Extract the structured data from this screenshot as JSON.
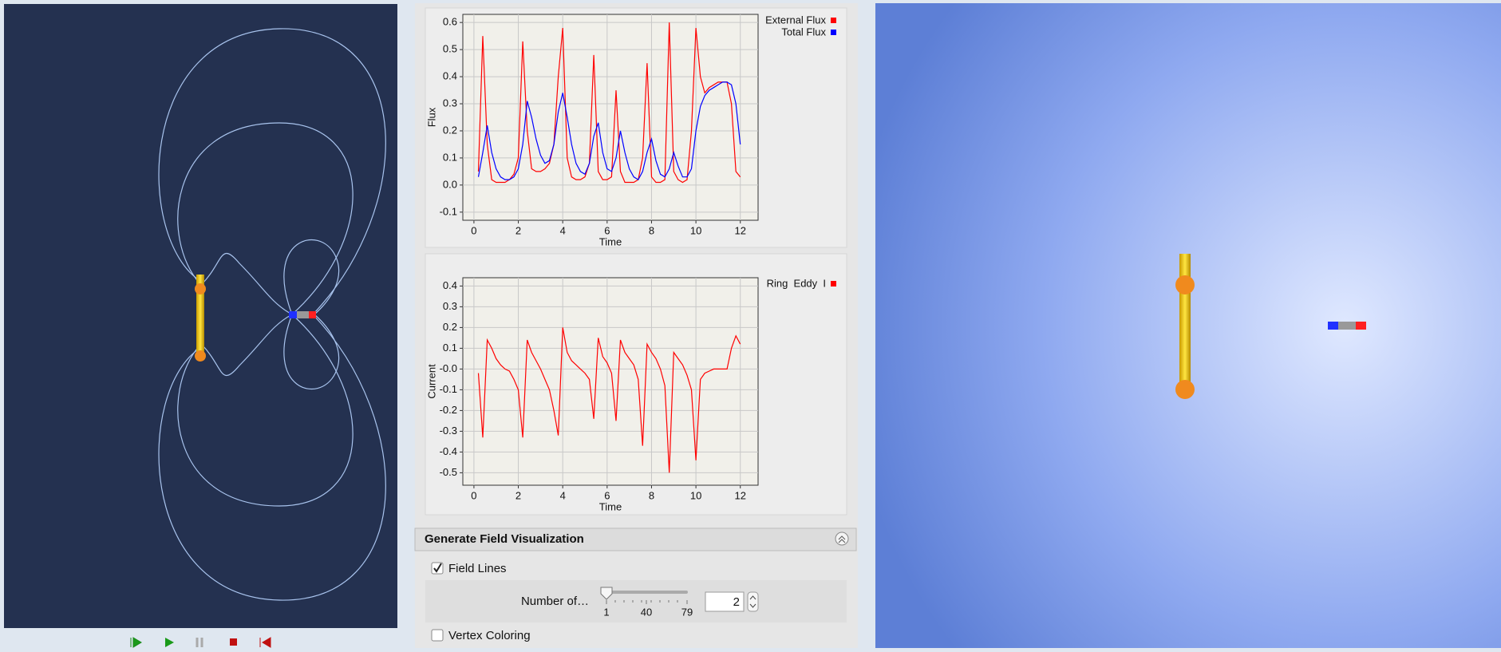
{
  "chart_data": [
    {
      "type": "line",
      "x_label": "Time",
      "y_label": "Flux",
      "grid": true,
      "legend": "right",
      "xlim": [
        -0.5,
        12.8
      ],
      "ylim": [
        -0.13,
        0.63
      ],
      "xticks": [
        0,
        2,
        4,
        6,
        8,
        10,
        12
      ],
      "yticks": [
        -0.1,
        {
          "value": 0,
          "label": "0.0"
        },
        0.1,
        0.2,
        0.3,
        0.4,
        0.5,
        0.6
      ],
      "x": [
        0.2,
        0.4,
        0.6,
        0.8,
        1.0,
        1.2,
        1.4,
        1.6,
        1.8,
        2.0,
        2.2,
        2.4,
        2.6,
        2.8,
        3.0,
        3.2,
        3.4,
        3.6,
        3.8,
        4.0,
        4.2,
        4.4,
        4.6,
        4.8,
        5.0,
        5.2,
        5.4,
        5.6,
        5.8,
        6.0,
        6.2,
        6.4,
        6.6,
        6.8,
        7.0,
        7.2,
        7.4,
        7.6,
        7.8,
        8.0,
        8.2,
        8.4,
        8.6,
        8.8,
        9.0,
        9.2,
        9.4,
        9.6,
        9.8,
        10.0,
        10.2,
        10.4,
        10.6,
        10.8,
        11.0,
        11.2,
        11.4,
        11.6,
        11.8,
        12.0
      ],
      "series": [
        {
          "name": "External Flux",
          "color": "#ff0000",
          "values": [
            0.05,
            0.55,
            0.15,
            0.02,
            0.01,
            0.01,
            0.01,
            0.02,
            0.04,
            0.1,
            0.53,
            0.2,
            0.06,
            0.05,
            0.05,
            0.06,
            0.08,
            0.15,
            0.4,
            0.58,
            0.1,
            0.03,
            0.02,
            0.02,
            0.03,
            0.08,
            0.48,
            0.05,
            0.02,
            0.02,
            0.03,
            0.35,
            0.05,
            0.01,
            0.01,
            0.01,
            0.02,
            0.1,
            0.45,
            0.03,
            0.01,
            0.01,
            0.02,
            0.6,
            0.05,
            0.02,
            0.01,
            0.02,
            0.2,
            0.58,
            0.4,
            0.34,
            0.36,
            0.37,
            0.38,
            0.38,
            0.38,
            0.3,
            0.05,
            0.03
          ]
        },
        {
          "name": "Total Flux",
          "color": "#0000ff",
          "values": [
            0.03,
            0.12,
            0.22,
            0.12,
            0.06,
            0.03,
            0.02,
            0.02,
            0.03,
            0.06,
            0.15,
            0.31,
            0.25,
            0.17,
            0.11,
            0.08,
            0.09,
            0.15,
            0.27,
            0.34,
            0.25,
            0.15,
            0.08,
            0.05,
            0.04,
            0.08,
            0.18,
            0.23,
            0.12,
            0.06,
            0.05,
            0.1,
            0.2,
            0.12,
            0.06,
            0.03,
            0.02,
            0.05,
            0.12,
            0.17,
            0.09,
            0.04,
            0.03,
            0.06,
            0.12,
            0.07,
            0.03,
            0.03,
            0.06,
            0.2,
            0.29,
            0.33,
            0.35,
            0.36,
            0.37,
            0.38,
            0.38,
            0.37,
            0.3,
            0.15
          ]
        }
      ]
    },
    {
      "type": "line",
      "x_label": "Time",
      "y_label": "Current",
      "grid": true,
      "legend": "right",
      "xlim": [
        -0.5,
        12.8
      ],
      "ylim": [
        -0.56,
        0.44
      ],
      "xticks": [
        0,
        2,
        4,
        6,
        8,
        10,
        12
      ],
      "yticks": [
        -0.5,
        -0.4,
        -0.3,
        -0.2,
        -0.1,
        {
          "value": 0,
          "label": "-0.0"
        },
        0.1,
        0.2,
        0.3,
        0.4
      ],
      "x": [
        0.2,
        0.4,
        0.6,
        0.8,
        1.0,
        1.2,
        1.4,
        1.6,
        1.8,
        2.0,
        2.2,
        2.4,
        2.6,
        2.8,
        3.0,
        3.2,
        3.4,
        3.6,
        3.8,
        4.0,
        4.2,
        4.4,
        4.6,
        4.8,
        5.0,
        5.2,
        5.4,
        5.6,
        5.8,
        6.0,
        6.2,
        6.4,
        6.6,
        6.8,
        7.0,
        7.2,
        7.4,
        7.6,
        7.8,
        8.0,
        8.2,
        8.4,
        8.6,
        8.8,
        9.0,
        9.2,
        9.4,
        9.6,
        9.8,
        10.0,
        10.2,
        10.4,
        10.6,
        10.8,
        11.0,
        11.2,
        11.4,
        11.6,
        11.8,
        12.0
      ],
      "series": [
        {
          "name": "Ring  Eddy  I",
          "color": "#ff0000",
          "values": [
            -0.02,
            -0.33,
            0.14,
            0.1,
            0.05,
            0.02,
            0.0,
            -0.01,
            -0.05,
            -0.1,
            -0.33,
            0.14,
            0.08,
            0.04,
            0.0,
            -0.05,
            -0.1,
            -0.2,
            -0.32,
            0.2,
            0.08,
            0.04,
            0.02,
            0.0,
            -0.02,
            -0.05,
            -0.24,
            0.15,
            0.06,
            0.03,
            -0.02,
            -0.25,
            0.14,
            0.08,
            0.05,
            0.02,
            -0.05,
            -0.37,
            0.12,
            0.08,
            0.05,
            0.0,
            -0.08,
            -0.5,
            0.08,
            0.05,
            0.02,
            -0.03,
            -0.1,
            -0.44,
            -0.05,
            -0.02,
            -0.01,
            0.0,
            0.0,
            0.0,
            0.0,
            0.1,
            0.16,
            0.12
          ]
        }
      ]
    }
  ],
  "controls": {
    "panel_title": "Generate Field Visualization",
    "field_lines": "Field Lines",
    "number_label": "Number of…",
    "slider_ticks": [
      "1",
      "40",
      "79"
    ],
    "number_value": "2",
    "vertex_coloring": "Vertex Coloring"
  }
}
